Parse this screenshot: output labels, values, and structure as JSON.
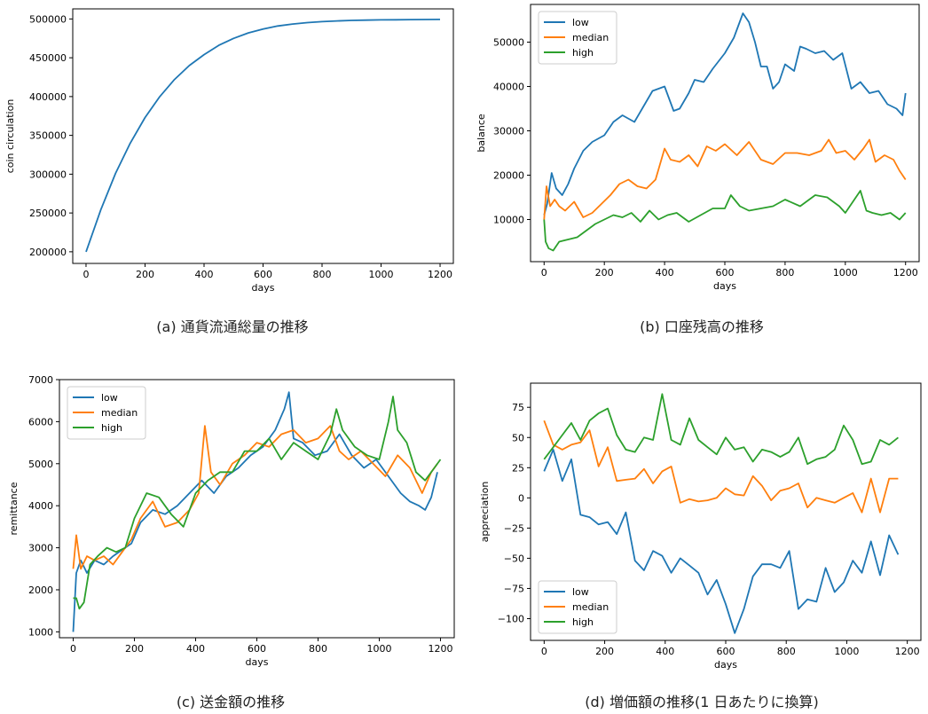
{
  "colors": {
    "low": "#1f77b4",
    "median": "#ff7f0e",
    "high": "#2ca02c"
  },
  "chart_data": [
    {
      "type": "line",
      "caption": "(a) 通貨流通総量の推移",
      "xlabel": "days",
      "ylabel": "coin circulation",
      "xlim": [
        -45,
        1245
      ],
      "ylim": [
        185000,
        513000
      ],
      "xticks": [
        "0",
        "200",
        "400",
        "600",
        "800",
        "1000",
        "1200"
      ],
      "yticks": [
        "200000",
        "250000",
        "300000",
        "350000",
        "400000",
        "450000",
        "500000"
      ],
      "legend": "none",
      "series": [
        {
          "key": "main",
          "color": "#1f77b4",
          "x": [
            0,
            50,
            100,
            150,
            200,
            250,
            300,
            350,
            400,
            450,
            500,
            550,
            600,
            650,
            700,
            750,
            800,
            850,
            900,
            950,
            1000,
            1050,
            1100,
            1150,
            1200
          ],
          "y": [
            200000,
            254000,
            301000,
            340000,
            373000,
            400000,
            422000,
            440000,
            454000,
            466000,
            475000,
            482000,
            487000,
            491000,
            493500,
            495300,
            496600,
            497500,
            498100,
            498500,
            498800,
            499000,
            499200,
            499300,
            499400
          ]
        }
      ]
    },
    {
      "type": "line",
      "caption": "(b) 口座残高の推移",
      "xlabel": "days",
      "ylabel": "balance",
      "xlim": [
        -45,
        1245
      ],
      "ylim": [
        500,
        58500
      ],
      "xticks": [
        "0",
        "200",
        "400",
        "600",
        "800",
        "1000",
        "1200"
      ],
      "yticks": [
        "10000",
        "20000",
        "30000",
        "40000",
        "50000"
      ],
      "legend": "top-left",
      "series": [
        {
          "name": "low",
          "color": "#1f77b4",
          "x": [
            0,
            10,
            25,
            40,
            60,
            80,
            100,
            130,
            160,
            200,
            230,
            260,
            300,
            330,
            360,
            400,
            430,
            450,
            480,
            500,
            530,
            560,
            600,
            630,
            660,
            680,
            700,
            720,
            740,
            760,
            780,
            800,
            830,
            850,
            870,
            900,
            930,
            960,
            990,
            1020,
            1050,
            1080,
            1110,
            1140,
            1170,
            1190,
            1200
          ],
          "y": [
            11000,
            13500,
            20500,
            17000,
            15500,
            18000,
            21500,
            25500,
            27500,
            29000,
            32000,
            33500,
            32000,
            35500,
            39000,
            40000,
            34500,
            35000,
            38500,
            41500,
            41000,
            44000,
            47500,
            51000,
            56500,
            54500,
            50000,
            44500,
            44500,
            39500,
            41000,
            45000,
            43500,
            49000,
            48500,
            47500,
            48000,
            46000,
            47500,
            39500,
            41000,
            38500,
            39000,
            36000,
            35000,
            33500,
            38500
          ]
        },
        {
          "name": "median",
          "color": "#ff7f0e",
          "x": [
            0,
            8,
            20,
            35,
            50,
            70,
            100,
            130,
            160,
            190,
            220,
            250,
            280,
            310,
            340,
            370,
            400,
            420,
            450,
            480,
            510,
            540,
            570,
            600,
            640,
            680,
            720,
            760,
            800,
            840,
            880,
            920,
            945,
            970,
            1000,
            1030,
            1060,
            1080,
            1100,
            1130,
            1160,
            1180,
            1200
          ],
          "y": [
            10000,
            17500,
            13000,
            14500,
            13000,
            12000,
            14000,
            10500,
            11500,
            13500,
            15500,
            18000,
            19000,
            17500,
            17000,
            19000,
            26000,
            23500,
            23000,
            24500,
            22000,
            26500,
            25500,
            27000,
            24500,
            27500,
            23500,
            22500,
            25000,
            25000,
            24500,
            25500,
            28000,
            25000,
            25500,
            23500,
            26000,
            28000,
            23000,
            24500,
            23500,
            21000,
            19000
          ]
        },
        {
          "name": "high",
          "color": "#2ca02c",
          "x": [
            0,
            5,
            15,
            30,
            50,
            80,
            110,
            140,
            170,
            200,
            230,
            260,
            290,
            320,
            350,
            380,
            410,
            440,
            480,
            520,
            560,
            600,
            620,
            650,
            680,
            720,
            760,
            800,
            850,
            900,
            940,
            980,
            1000,
            1030,
            1050,
            1070,
            1090,
            1120,
            1150,
            1180,
            1200
          ],
          "y": [
            10000,
            5000,
            3500,
            3000,
            5000,
            5500,
            6000,
            7500,
            9000,
            10000,
            11000,
            10500,
            11500,
            9500,
            12000,
            10000,
            11000,
            11500,
            9500,
            11000,
            12500,
            12500,
            15500,
            13000,
            12000,
            12500,
            13000,
            14500,
            13000,
            15500,
            15000,
            13000,
            11500,
            14500,
            16500,
            12000,
            11500,
            11000,
            11500,
            10000,
            11500
          ]
        }
      ]
    },
    {
      "type": "line",
      "caption": "(c) 送金額の推移",
      "xlabel": "days",
      "ylabel": "remittance",
      "xlim": [
        -45,
        1245
      ],
      "ylim": [
        860,
        7000
      ],
      "xticks": [
        "0",
        "200",
        "400",
        "600",
        "800",
        "1000",
        "1200"
      ],
      "yticks": [
        "1000",
        "2000",
        "3000",
        "4000",
        "5000",
        "6000",
        "7000"
      ],
      "legend": "top-left",
      "series": [
        {
          "name": "low",
          "color": "#1f77b4",
          "x": [
            0,
            10,
            25,
            45,
            70,
            100,
            130,
            160,
            190,
            220,
            260,
            300,
            340,
            380,
            420,
            460,
            500,
            540,
            580,
            620,
            660,
            690,
            705,
            720,
            750,
            790,
            830,
            870,
            910,
            950,
            990,
            1030,
            1070,
            1100,
            1130,
            1150,
            1170,
            1190
          ],
          "y": [
            1000,
            2400,
            2700,
            2400,
            2700,
            2600,
            2800,
            2950,
            3100,
            3600,
            3900,
            3800,
            4000,
            4300,
            4600,
            4300,
            4700,
            4900,
            5200,
            5400,
            5800,
            6300,
            6700,
            5600,
            5500,
            5200,
            5300,
            5700,
            5200,
            4900,
            5100,
            4700,
            4300,
            4100,
            4000,
            3900,
            4200,
            4800
          ]
        },
        {
          "name": "median",
          "color": "#ff7f0e",
          "x": [
            0,
            10,
            25,
            45,
            70,
            100,
            130,
            160,
            190,
            220,
            260,
            300,
            340,
            380,
            410,
            430,
            450,
            480,
            520,
            560,
            600,
            640,
            680,
            720,
            760,
            800,
            840,
            870,
            900,
            940,
            980,
            1020,
            1060,
            1100,
            1140,
            1170,
            1190
          ],
          "y": [
            2500,
            3300,
            2500,
            2800,
            2700,
            2800,
            2600,
            2900,
            3200,
            3700,
            4100,
            3500,
            3600,
            3900,
            4300,
            5900,
            4800,
            4500,
            5000,
            5200,
            5500,
            5400,
            5700,
            5800,
            5500,
            5600,
            5900,
            5300,
            5100,
            5300,
            5000,
            4700,
            5200,
            4900,
            4300,
            4800,
            5000
          ]
        },
        {
          "name": "high",
          "color": "#2ca02c",
          "x": [
            0,
            10,
            20,
            35,
            55,
            80,
            110,
            140,
            170,
            200,
            240,
            280,
            320,
            360,
            400,
            440,
            480,
            520,
            560,
            600,
            640,
            680,
            720,
            760,
            800,
            840,
            860,
            880,
            920,
            960,
            1000,
            1030,
            1045,
            1060,
            1090,
            1120,
            1150,
            1180,
            1200
          ],
          "y": [
            1800,
            1800,
            1550,
            1700,
            2600,
            2800,
            3000,
            2900,
            3000,
            3700,
            4300,
            4200,
            3800,
            3500,
            4300,
            4600,
            4800,
            4800,
            5300,
            5300,
            5600,
            5100,
            5500,
            5300,
            5100,
            5700,
            6300,
            5800,
            5400,
            5200,
            5100,
            6000,
            6600,
            5800,
            5500,
            4800,
            4600,
            4900,
            5100
          ]
        }
      ]
    },
    {
      "type": "line",
      "caption": "(d) 増価額の推移(1 日あたりに換算)",
      "xlabel": "days",
      "ylabel": "appreciation",
      "xlim": [
        -45,
        1245
      ],
      "ylim": [
        -118,
        95
      ],
      "xticks": [
        "0",
        "200",
        "400",
        "600",
        "800",
        "1000",
        "1200"
      ],
      "yticks": [
        "-100",
        "-75",
        "-50",
        "-25",
        "0",
        "25",
        "50",
        "75"
      ],
      "legend": "bottom-left",
      "series": [
        {
          "name": "low",
          "color": "#1f77b4",
          "x": [
            0,
            30,
            60,
            90,
            120,
            150,
            180,
            210,
            240,
            270,
            300,
            330,
            360,
            390,
            420,
            450,
            480,
            510,
            540,
            570,
            600,
            630,
            660,
            690,
            720,
            750,
            780,
            810,
            840,
            870,
            900,
            930,
            960,
            990,
            1020,
            1050,
            1080,
            1110,
            1140,
            1170
          ],
          "y": [
            22,
            40,
            14,
            32,
            -14,
            -16,
            -22,
            -20,
            -30,
            -12,
            -52,
            -60,
            -44,
            -48,
            -62,
            -50,
            -56,
            -62,
            -80,
            -68,
            -88,
            -112,
            -92,
            -65,
            -55,
            -55,
            -58,
            -44,
            -92,
            -84,
            -86,
            -58,
            -78,
            -70,
            -52,
            -62,
            -36,
            -64,
            -31,
            -47
          ]
        },
        {
          "name": "median",
          "color": "#ff7f0e",
          "x": [
            0,
            30,
            60,
            90,
            120,
            150,
            180,
            210,
            240,
            270,
            300,
            330,
            360,
            390,
            420,
            450,
            480,
            510,
            540,
            570,
            600,
            630,
            660,
            690,
            720,
            750,
            780,
            810,
            840,
            870,
            900,
            930,
            960,
            990,
            1020,
            1050,
            1080,
            1110,
            1140,
            1170
          ],
          "y": [
            64,
            44,
            40,
            44,
            46,
            56,
            26,
            42,
            14,
            15,
            16,
            24,
            12,
            22,
            26,
            -4,
            -1,
            -3,
            -2,
            0,
            8,
            3,
            2,
            18,
            10,
            -2,
            6,
            8,
            12,
            -8,
            0,
            -2,
            -4,
            0,
            4,
            -12,
            16,
            -12,
            16,
            16
          ]
        },
        {
          "name": "high",
          "color": "#2ca02c",
          "x": [
            0,
            30,
            60,
            90,
            120,
            150,
            180,
            210,
            240,
            270,
            300,
            330,
            360,
            390,
            420,
            450,
            480,
            510,
            540,
            570,
            600,
            630,
            660,
            690,
            720,
            750,
            780,
            810,
            840,
            870,
            900,
            930,
            960,
            990,
            1020,
            1050,
            1080,
            1110,
            1140,
            1170
          ],
          "y": [
            32,
            42,
            52,
            62,
            48,
            64,
            70,
            74,
            52,
            40,
            38,
            50,
            48,
            86,
            48,
            44,
            66,
            48,
            42,
            36,
            50,
            40,
            42,
            30,
            40,
            38,
            34,
            38,
            50,
            28,
            32,
            34,
            40,
            60,
            48,
            28,
            30,
            48,
            44,
            50
          ]
        }
      ]
    }
  ]
}
